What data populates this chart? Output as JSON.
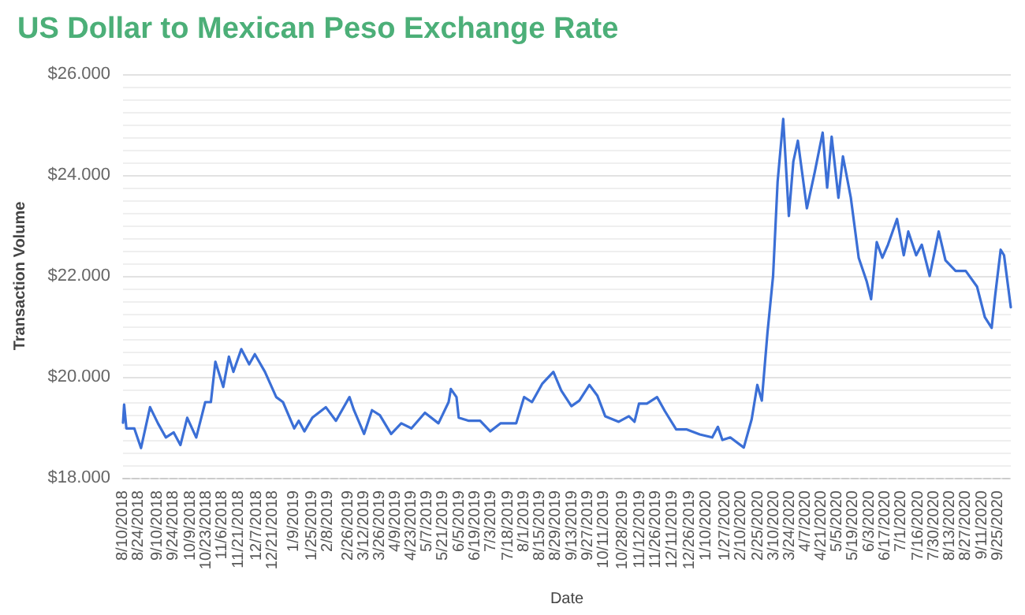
{
  "chart_data": {
    "type": "line",
    "title": "US Dollar to Mexican Peso Exchange Rate",
    "xlabel": "Date",
    "ylabel": "Transaction Volume",
    "x": [
      "2018-08-10",
      "2018-08-11",
      "2018-08-13",
      "2018-08-20",
      "2018-08-26",
      "2018-09-03",
      "2018-09-10",
      "2018-09-17",
      "2018-09-24",
      "2018-09-30",
      "2018-10-06",
      "2018-10-14",
      "2018-10-22",
      "2018-10-27",
      "2018-10-31",
      "2018-11-07",
      "2018-11-12",
      "2018-11-16",
      "2018-11-23",
      "2018-11-30",
      "2018-12-05",
      "2018-12-14",
      "2018-12-24",
      "2018-12-30",
      "2019-01-09",
      "2019-01-13",
      "2019-01-18",
      "2019-01-25",
      "2019-02-06",
      "2019-02-15",
      "2019-02-27",
      "2019-03-03",
      "2019-03-12",
      "2019-03-19",
      "2019-03-26",
      "2019-04-05",
      "2019-04-14",
      "2019-04-23",
      "2019-05-05",
      "2019-05-17",
      "2019-05-26",
      "2019-05-28",
      "2019-06-02",
      "2019-06-04",
      "2019-06-13",
      "2019-06-23",
      "2019-07-02",
      "2019-07-11",
      "2019-07-25",
      "2019-08-01",
      "2019-08-08",
      "2019-08-17",
      "2019-08-27",
      "2019-09-03",
      "2019-09-12",
      "2019-09-19",
      "2019-09-28",
      "2019-10-05",
      "2019-10-12",
      "2019-10-24",
      "2019-11-02",
      "2019-11-07",
      "2019-11-11",
      "2019-11-18",
      "2019-11-27",
      "2019-12-04",
      "2019-12-14",
      "2019-12-23",
      "2020-01-04",
      "2020-01-15",
      "2020-01-20",
      "2020-01-24",
      "2020-01-31",
      "2020-02-12",
      "2020-02-19",
      "2020-02-24",
      "2020-02-28",
      "2020-03-04",
      "2020-03-09",
      "2020-03-13",
      "2020-03-18",
      "2020-03-23",
      "2020-03-27",
      "2020-03-31",
      "2020-04-08",
      "2020-04-15",
      "2020-04-22",
      "2020-04-26",
      "2020-04-30",
      "2020-05-06",
      "2020-05-10",
      "2020-05-17",
      "2020-05-24",
      "2020-05-31",
      "2020-06-04",
      "2020-06-09",
      "2020-06-14",
      "2020-06-19",
      "2020-06-27",
      "2020-07-03",
      "2020-07-07",
      "2020-07-14",
      "2020-07-19",
      "2020-07-26",
      "2020-08-03",
      "2020-08-09",
      "2020-08-18",
      "2020-08-27",
      "2020-09-06",
      "2020-09-13",
      "2020-09-19",
      "2020-09-22",
      "2020-09-27",
      "2020-09-30",
      "2020-10-06"
    ],
    "series": [
      {
        "color": "#3b6fd6",
        "values": [
          19.09,
          19.45,
          18.98,
          18.98,
          18.59,
          19.4,
          19.08,
          18.8,
          18.9,
          18.65,
          19.19,
          18.8,
          19.5,
          19.5,
          20.3,
          19.8,
          20.4,
          20.1,
          20.55,
          20.25,
          20.45,
          20.1,
          19.6,
          19.5,
          18.98,
          19.13,
          18.92,
          19.19,
          19.4,
          19.13,
          19.6,
          19.34,
          18.87,
          19.34,
          19.24,
          18.87,
          19.08,
          18.98,
          19.29,
          19.08,
          19.5,
          19.76,
          19.6,
          19.19,
          19.13,
          19.13,
          18.92,
          19.08,
          19.08,
          19.6,
          19.5,
          19.86,
          20.1,
          19.73,
          19.42,
          19.53,
          19.84,
          19.63,
          19.22,
          19.11,
          19.22,
          19.11,
          19.47,
          19.47,
          19.6,
          19.32,
          18.96,
          18.96,
          18.86,
          18.8,
          19.01,
          18.75,
          18.8,
          18.6,
          19.16,
          19.84,
          19.53,
          20.87,
          22.0,
          23.86,
          25.11,
          23.19,
          24.27,
          24.68,
          23.34,
          24.06,
          24.84,
          23.75,
          24.76,
          23.55,
          24.37,
          23.55,
          22.36,
          21.9,
          21.54,
          22.67,
          22.36,
          22.62,
          23.13,
          22.41,
          22.88,
          22.41,
          22.62,
          22.0,
          22.88,
          22.31,
          22.1,
          22.1,
          21.79,
          21.18,
          20.97,
          21.59,
          22.52,
          22.41,
          21.38
        ]
      }
    ],
    "xlim": [
      "2018-08-10",
      "2020-10-06"
    ],
    "xticks": [
      {
        "value": "2018-08-10",
        "label": "8/10/2018"
      },
      {
        "value": "2018-08-24",
        "label": "8/24/2018"
      },
      {
        "value": "2018-09-10",
        "label": "9/10/2018"
      },
      {
        "value": "2018-09-24",
        "label": "9/24/2018"
      },
      {
        "value": "2018-10-09",
        "label": "10/9/2018"
      },
      {
        "value": "2018-10-23",
        "label": "10/23/2018"
      },
      {
        "value": "2018-11-06",
        "label": "11/6/2018"
      },
      {
        "value": "2018-11-21",
        "label": "11/21/2018"
      },
      {
        "value": "2018-12-07",
        "label": "12/7/2018"
      },
      {
        "value": "2018-12-21",
        "label": "12/21/2018"
      },
      {
        "value": "2019-01-09",
        "label": "1/9/2019"
      },
      {
        "value": "2019-01-25",
        "label": "1/25/2019"
      },
      {
        "value": "2019-02-08",
        "label": "2/8/2019"
      },
      {
        "value": "2019-02-26",
        "label": "2/26/2019"
      },
      {
        "value": "2019-03-12",
        "label": "3/12/2019"
      },
      {
        "value": "2019-03-26",
        "label": "3/26/2019"
      },
      {
        "value": "2019-04-09",
        "label": "4/9/2019"
      },
      {
        "value": "2019-04-23",
        "label": "4/23/2019"
      },
      {
        "value": "2019-05-07",
        "label": "5/7/2019"
      },
      {
        "value": "2019-05-21",
        "label": "5/21/2019"
      },
      {
        "value": "2019-06-05",
        "label": "6/5/2019"
      },
      {
        "value": "2019-06-19",
        "label": "6/19/2019"
      },
      {
        "value": "2019-07-03",
        "label": "7/3/2019"
      },
      {
        "value": "2019-07-18",
        "label": "7/18/2019"
      },
      {
        "value": "2019-08-01",
        "label": "8/1/2019"
      },
      {
        "value": "2019-08-15",
        "label": "8/15/2019"
      },
      {
        "value": "2019-08-29",
        "label": "8/29/2019"
      },
      {
        "value": "2019-09-13",
        "label": "9/13/2019"
      },
      {
        "value": "2019-09-27",
        "label": "9/27/2019"
      },
      {
        "value": "2019-10-11",
        "label": "10/11/2019"
      },
      {
        "value": "2019-10-28",
        "label": "10/28/2019"
      },
      {
        "value": "2019-11-12",
        "label": "11/12/2019"
      },
      {
        "value": "2019-11-26",
        "label": "11/26/2019"
      },
      {
        "value": "2019-12-11",
        "label": "12/11/2019"
      },
      {
        "value": "2019-12-26",
        "label": "12/26/2019"
      },
      {
        "value": "2020-01-10",
        "label": "1/10/2020"
      },
      {
        "value": "2020-01-27",
        "label": "1/27/2020"
      },
      {
        "value": "2020-02-10",
        "label": "2/10/2020"
      },
      {
        "value": "2020-02-25",
        "label": "2/25/2020"
      },
      {
        "value": "2020-03-10",
        "label": "3/10/2020"
      },
      {
        "value": "2020-03-24",
        "label": "3/24/2020"
      },
      {
        "value": "2020-04-07",
        "label": "4/7/2020"
      },
      {
        "value": "2020-04-21",
        "label": "4/21/2020"
      },
      {
        "value": "2020-05-05",
        "label": "5/5/2020"
      },
      {
        "value": "2020-05-19",
        "label": "5/19/2020"
      },
      {
        "value": "2020-06-03",
        "label": "6/3/2020"
      },
      {
        "value": "2020-06-17",
        "label": "6/17/2020"
      },
      {
        "value": "2020-07-01",
        "label": "7/1/2020"
      },
      {
        "value": "2020-07-16",
        "label": "7/16/2020"
      },
      {
        "value": "2020-07-30",
        "label": "7/30/2020"
      },
      {
        "value": "2020-08-13",
        "label": "8/13/2020"
      },
      {
        "value": "2020-08-27",
        "label": "8/27/2020"
      },
      {
        "value": "2020-09-11",
        "label": "9/11/2020"
      },
      {
        "value": "2020-09-25",
        "label": "9/25/2020"
      }
    ],
    "ylim": [
      18,
      26
    ],
    "yticks": [
      {
        "value": 18,
        "label": "$18.000"
      },
      {
        "value": 20,
        "label": "$20.000"
      },
      {
        "value": 22,
        "label": "$22.000"
      },
      {
        "value": 24,
        "label": "$24.000"
      },
      {
        "value": 26,
        "label": "$26.000"
      }
    ],
    "grid": "y",
    "marker": "none",
    "line_style": "solid"
  }
}
